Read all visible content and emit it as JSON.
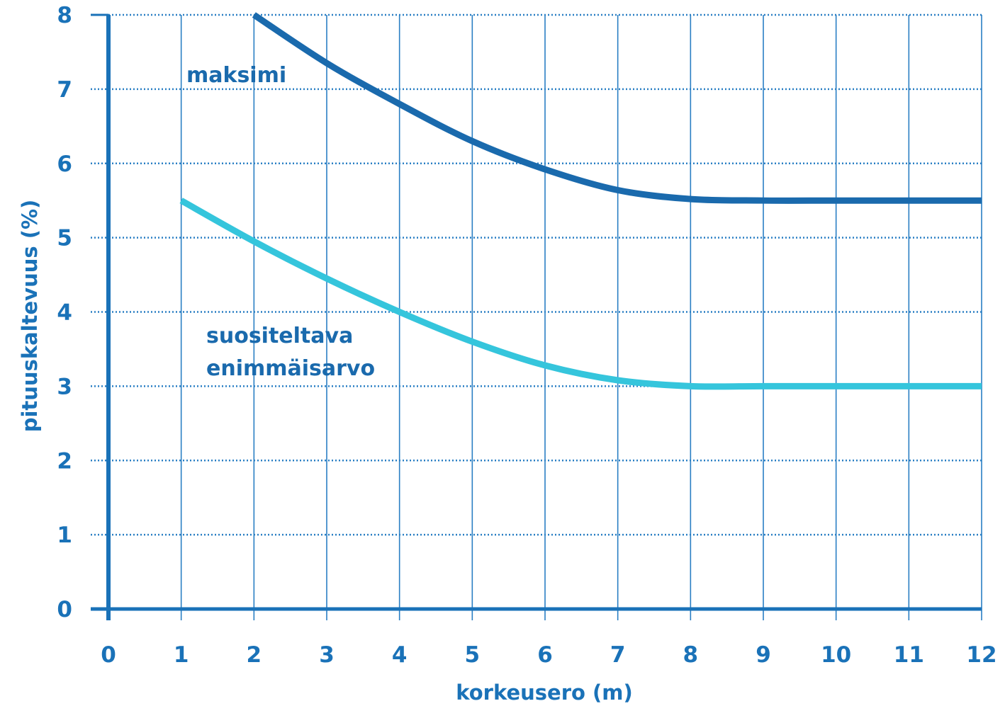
{
  "chart_data": {
    "type": "line",
    "xlabel": "korkeusero (m)",
    "ylabel": "pituuskaltevuus (%)",
    "xlim": [
      0,
      12
    ],
    "ylim": [
      0,
      8
    ],
    "x_ticks": [
      "0",
      "1",
      "2",
      "3",
      "4",
      "5",
      "6",
      "7",
      "8",
      "9",
      "10",
      "11",
      "12"
    ],
    "y_ticks": [
      "0",
      "1",
      "2",
      "3",
      "4",
      "5",
      "6",
      "7",
      "8"
    ],
    "grid": true,
    "series": [
      {
        "name": "maksimi",
        "label_lines": [
          "maksimi"
        ],
        "color": "#1a6aad",
        "x": [
          2,
          3,
          4,
          5,
          6,
          7,
          8,
          9,
          10,
          11,
          12
        ],
        "y": [
          8.0,
          7.35,
          6.8,
          6.3,
          5.92,
          5.64,
          5.52,
          5.5,
          5.5,
          5.5,
          5.5
        ]
      },
      {
        "name": "suositeltava enimmäisarvo",
        "label_lines": [
          "suositeltava",
          "enimmäisarvo"
        ],
        "color": "#35c5dc",
        "x": [
          1,
          2,
          3,
          4,
          5,
          6,
          7,
          8,
          9,
          10,
          11,
          12
        ],
        "y": [
          5.5,
          4.95,
          4.45,
          4.0,
          3.6,
          3.28,
          3.08,
          3.0,
          3.0,
          3.0,
          3.0,
          3.0
        ]
      }
    ]
  },
  "colors": {
    "axis": "#1a72b8",
    "grid": "#2a7fc4",
    "text": "#1a72b8"
  }
}
